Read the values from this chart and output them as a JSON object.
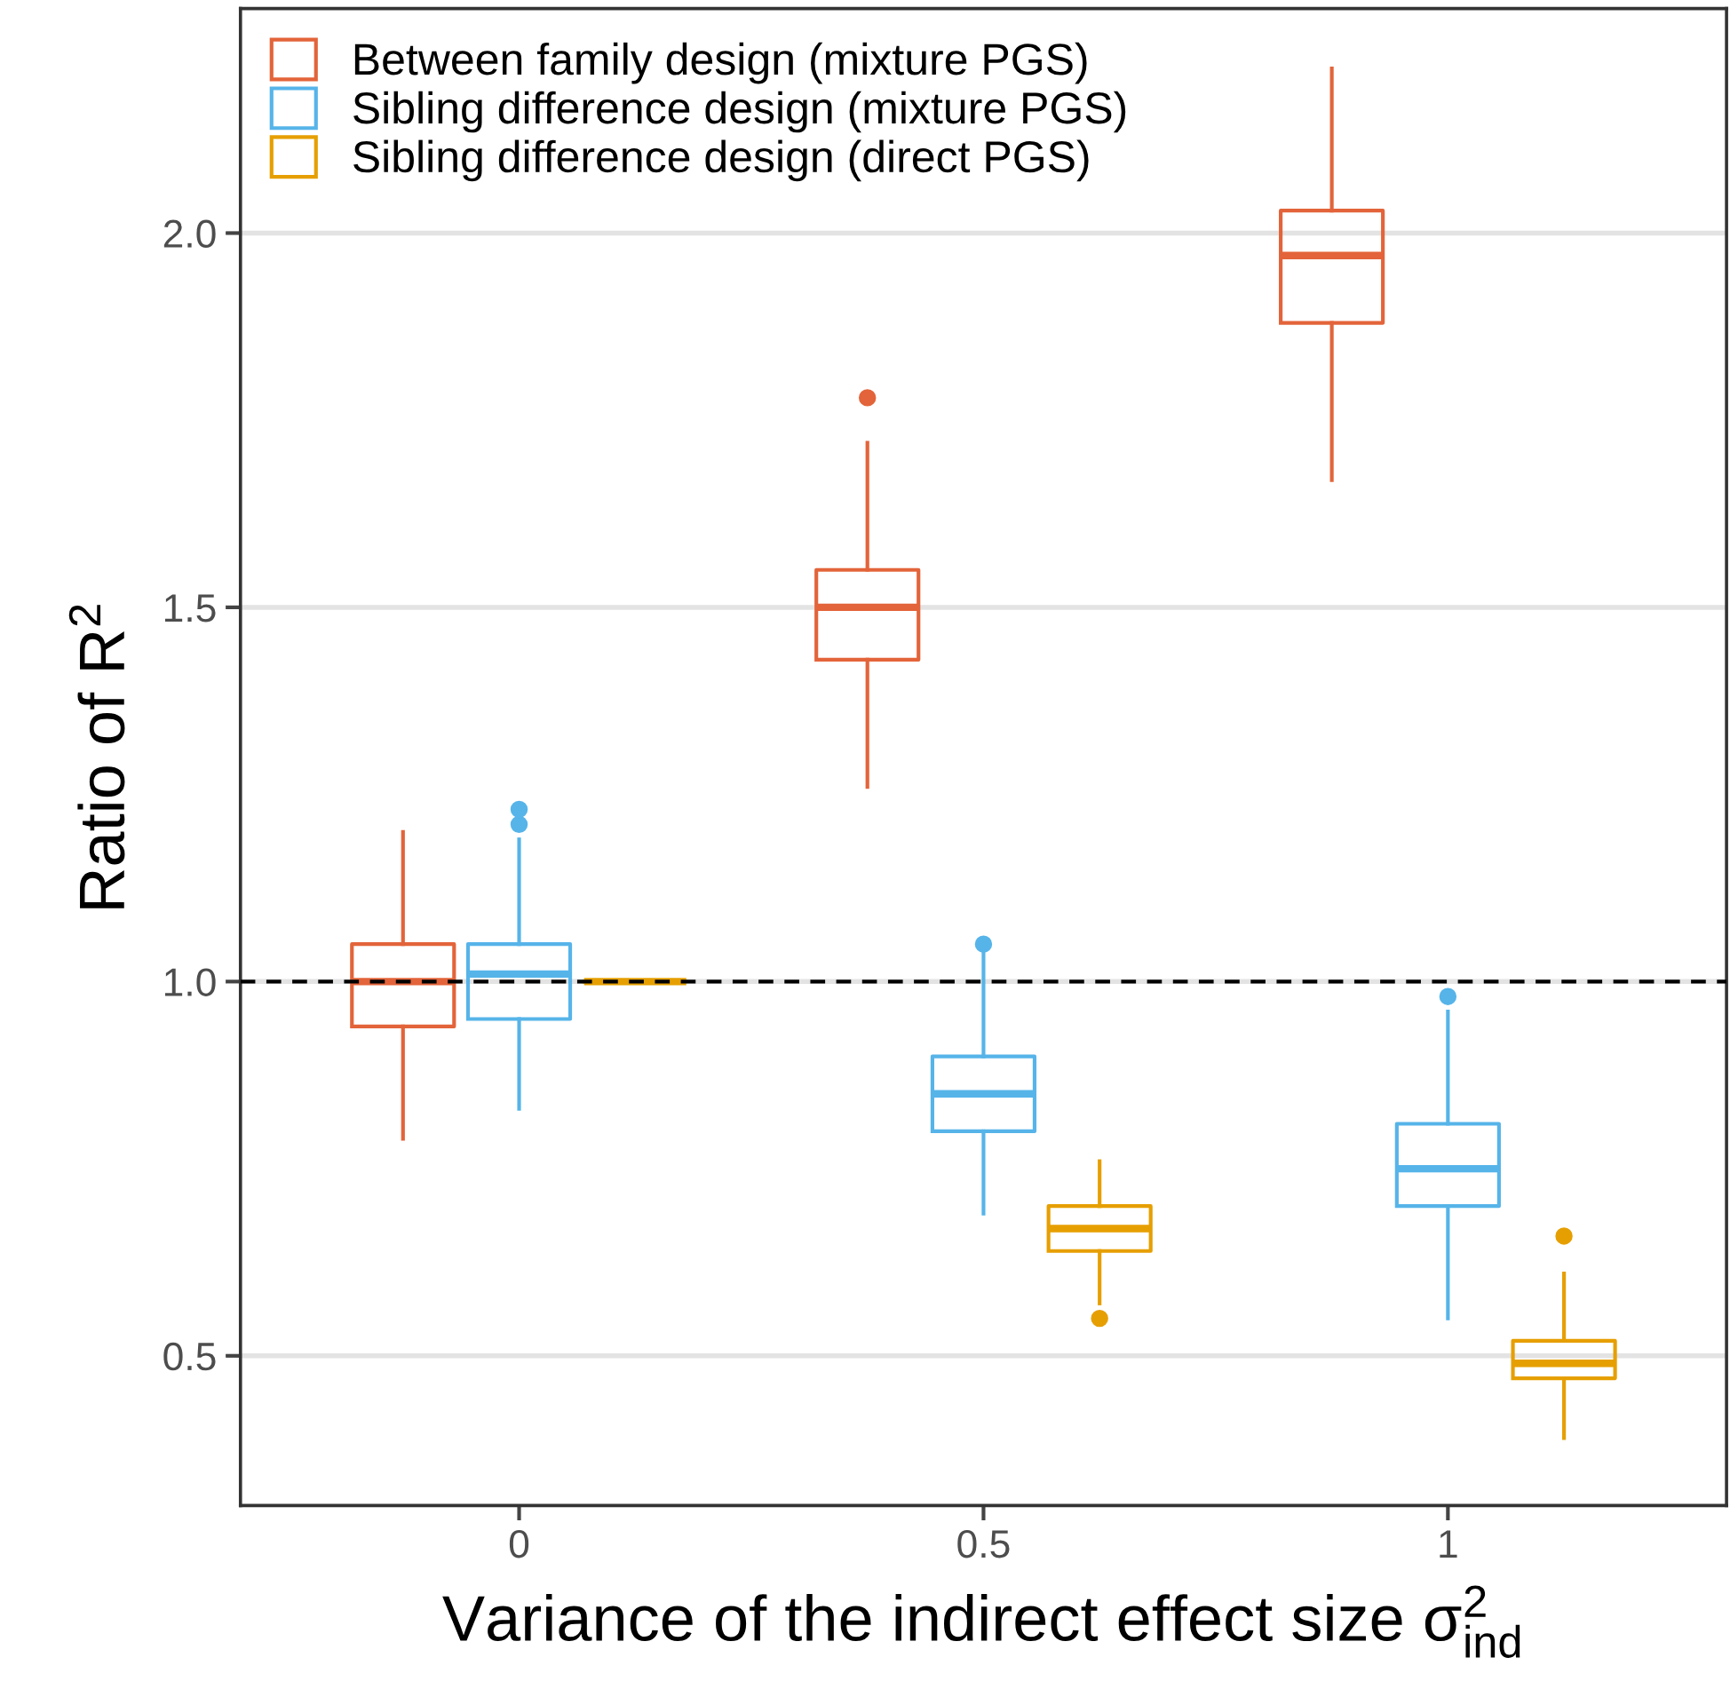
{
  "chart_data": {
    "type": "box",
    "xlabel": "Variance of the indirect effect size σ$^{2}$$_{ind}$",
    "ylabel": "Ratio of R$^{2}$",
    "categories": [
      "0",
      "0.5",
      "1"
    ],
    "ylim": [
      0.3,
      2.3
    ],
    "yticks": [
      0.5,
      {
        "value": 1,
        "label": "1.0"
      },
      1.5,
      {
        "value": 2,
        "label": "2.0"
      }
    ],
    "grid": "y",
    "legend": "top left",
    "ref_lines": [
      {
        "axis": "y",
        "value": 1.0,
        "color": "#000000",
        "line_style": "dashed"
      }
    ],
    "series": [
      {
        "name": "Between family design (mixture PGS)",
        "color": "#e3643a",
        "boxes": [
          {
            "low": 0.79,
            "q1": 0.94,
            "median": 1.0,
            "q3": 1.05,
            "high": 1.2
          },
          {
            "low": 1.26,
            "q1": 1.43,
            "median": 1.5,
            "q3": 1.55,
            "high": 1.72,
            "outliers": [
              1.78
            ]
          },
          {
            "low": 1.67,
            "q1": 1.88,
            "median": 1.97,
            "q3": 2.03,
            "high": 2.22
          }
        ]
      },
      {
        "name": "Sibling difference design (mixture PGS)",
        "color": "#56b4e9",
        "boxes": [
          {
            "low": 0.83,
            "q1": 0.95,
            "median": 1.01,
            "q3": 1.05,
            "high": 1.19,
            "outliers": [
              1.21,
              1.23
            ]
          },
          {
            "low": 0.69,
            "q1": 0.8,
            "median": 0.85,
            "q3": 0.9,
            "high": 1.04,
            "outliers": [
              1.05
            ]
          },
          {
            "low": 0.55,
            "q1": 0.7,
            "median": 0.75,
            "q3": 0.81,
            "high": 0.96,
            "outliers": [
              0.98
            ]
          }
        ]
      },
      {
        "name": "Sibling difference design (direct PGS)",
        "color": "#e69f00",
        "boxes": [
          {
            "low": 1.0,
            "q1": 1.0,
            "median": 1.0,
            "q3": 1.0,
            "high": 1.0
          },
          {
            "low": 0.57,
            "q1": 0.64,
            "median": 0.67,
            "q3": 0.7,
            "high": 0.76,
            "outliers": [
              0.55
            ]
          },
          {
            "low": 0.39,
            "q1": 0.47,
            "median": 0.49,
            "q3": 0.52,
            "high": 0.61,
            "outliers": [
              0.66
            ]
          }
        ]
      }
    ]
  }
}
